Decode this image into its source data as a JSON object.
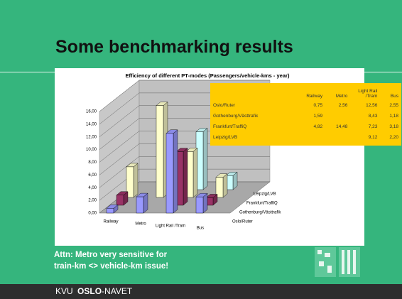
{
  "slide": {
    "title": "Some benchmarking results",
    "note": [
      "Attn: Metro very sensitive for",
      "train-km <> vehicle-km issue!"
    ],
    "footer": [
      "KVU",
      "OSLO",
      "-NAVET"
    ]
  },
  "chart_data": {
    "type": "bar3d",
    "title": "Efficiency of different PT-modes (Passengers/vehicle-kms - year)",
    "categories": [
      "Railway",
      "Metro",
      "Light Rail /Tram",
      "Bus"
    ],
    "series": [
      {
        "name": "Oslo/Ruter",
        "color": "#9999ff",
        "values": [
          0.75,
          2.56,
          12.56,
          2.55
        ],
        "value_labels": [
          "0,75",
          "2,56",
          "12,56",
          "2,55"
        ]
      },
      {
        "name": "Gothenburg/Västtrafik",
        "color": "#993366",
        "values": [
          1.59,
          null,
          8.43,
          1.18
        ],
        "value_labels": [
          "1,59",
          null,
          "8,43",
          "1,18"
        ]
      },
      {
        "name": "Frankfurt/TraffiQ",
        "color": "#ffffcc",
        "values": [
          4.82,
          14.48,
          7.23,
          3.18
        ],
        "value_labels": [
          "4,82",
          "14,48",
          "7,23",
          "3,18"
        ]
      },
      {
        "name": "Leipzig/LVB",
        "color": "#ccffff",
        "values": [
          null,
          null,
          9.12,
          2.2
        ],
        "value_labels": [
          null,
          null,
          "9,12",
          "2,20"
        ]
      }
    ],
    "ylim": [
      0,
      16
    ],
    "yticks": [
      {
        "value": 0,
        "label": "0,00"
      },
      {
        "value": 2,
        "label": "2,00"
      },
      {
        "value": 4,
        "label": "4,00"
      },
      {
        "value": 6,
        "label": "6,00"
      },
      {
        "value": 8,
        "label": "8,00"
      },
      {
        "value": 10,
        "label": "10,00"
      },
      {
        "value": 12,
        "label": "12,00"
      },
      {
        "value": 14,
        "label": "14,00"
      },
      {
        "value": 16,
        "label": "16,00"
      }
    ],
    "grid": true
  }
}
